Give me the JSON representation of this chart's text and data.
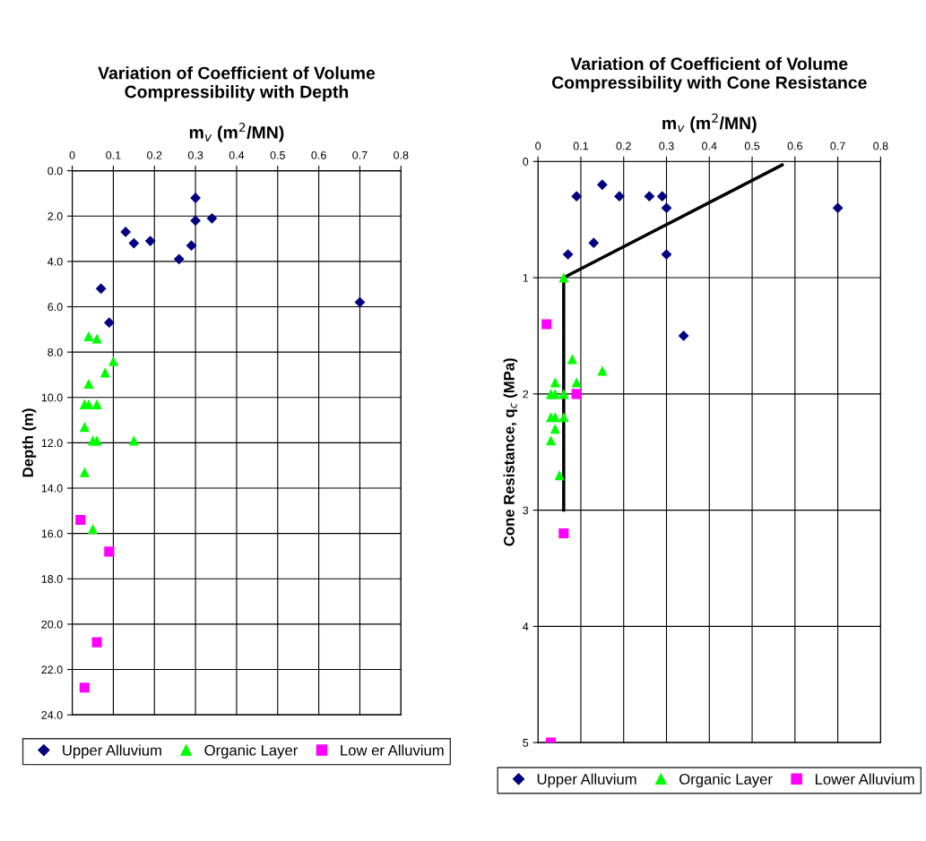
{
  "chart_data": [
    {
      "type": "scatter",
      "title": "Variation of Coefficient of Volume\nCompressibility with Depth",
      "xlabel": "m$_{v}$ (m$^{2}$/MN)",
      "ylabel": "Depth (m)",
      "xlim": [
        0,
        0.8
      ],
      "xticks": [
        0,
        0.1,
        0.2,
        0.3,
        0.4,
        0.5,
        0.6,
        0.7,
        0.8
      ],
      "ylim": [
        24,
        0
      ],
      "yticks": [
        {
          "value": 0,
          "label": "0.0"
        },
        {
          "value": 2,
          "label": "2.0"
        },
        {
          "value": 4,
          "label": "4.0"
        },
        {
          "value": 6,
          "label": "6.0"
        },
        {
          "value": 8,
          "label": "8.0"
        },
        {
          "value": 10,
          "label": "10.0"
        },
        {
          "value": 12,
          "label": "12.0"
        },
        {
          "value": 14,
          "label": "14.0"
        },
        {
          "value": 16,
          "label": "16.0"
        },
        {
          "value": 18,
          "label": "18.0"
        },
        {
          "value": 20,
          "label": "20.0"
        },
        {
          "value": 22,
          "label": "22.0"
        },
        {
          "value": 24,
          "label": "24.0"
        }
      ],
      "grid": true,
      "legend": "bottom",
      "series": [
        {
          "name": "Upper Alluvium",
          "color": "#000080",
          "marker": "diamond",
          "x": [
            0.3,
            0.3,
            0.34,
            0.13,
            0.15,
            0.19,
            0.29,
            0.26,
            0.07,
            0.7,
            0.09
          ],
          "values": [
            1.2,
            2.2,
            2.1,
            2.7,
            3.2,
            3.1,
            3.3,
            3.9,
            5.2,
            5.8,
            6.7
          ]
        },
        {
          "name": "Organic Layer",
          "color": "#00ff00",
          "marker": "triangle",
          "x": [
            0.04,
            0.06,
            0.1,
            0.08,
            0.04,
            0.03,
            0.04,
            0.06,
            0.03,
            0.05,
            0.06,
            0.15,
            0.03,
            0.05
          ],
          "values": [
            7.3,
            7.4,
            8.4,
            8.9,
            9.4,
            10.3,
            10.3,
            10.3,
            11.3,
            11.9,
            11.9,
            11.9,
            13.3,
            15.8
          ]
        },
        {
          "name": "Low er Alluvium",
          "color": "#ff00ff",
          "marker": "square",
          "x": [
            0.02,
            0.09,
            0.06,
            0.03
          ],
          "values": [
            15.4,
            16.8,
            20.8,
            22.8
          ]
        }
      ]
    },
    {
      "type": "scatter",
      "title": "Variation of Coefficient of Volume\nCompressibility with Cone Resistance",
      "xlabel": "m$_{v}$ (m$^{2}$/MN)",
      "ylabel": "Cone Resistance, q$_{c}$ (MPa)",
      "xlim": [
        0,
        0.8
      ],
      "xticks": [
        0,
        0.1,
        0.2,
        0.3,
        0.4,
        0.5,
        0.6,
        0.7,
        0.8
      ],
      "ylim": [
        5,
        0
      ],
      "yticks": [
        0,
        1,
        2,
        3,
        4,
        5
      ],
      "grid": true,
      "legend": "bottom",
      "series": [
        {
          "name": "Upper Alluvium",
          "color": "#000080",
          "marker": "diamond",
          "x": [
            0.09,
            0.15,
            0.19,
            0.26,
            0.29,
            0.3,
            0.7,
            0.13,
            0.07,
            0.3,
            0.34
          ],
          "values": [
            0.3,
            0.2,
            0.3,
            0.3,
            0.3,
            0.4,
            0.4,
            0.7,
            0.8,
            0.8,
            1.5
          ]
        },
        {
          "name": "Organic Layer",
          "color": "#00ff00",
          "marker": "triangle",
          "x": [
            0.06,
            0.08,
            0.15,
            0.04,
            0.09,
            0.03,
            0.04,
            0.06,
            0.03,
            0.04,
            0.06,
            0.04,
            0.03,
            0.05
          ],
          "values": [
            1.0,
            1.7,
            1.8,
            1.9,
            1.9,
            2.0,
            2.0,
            2.0,
            2.2,
            2.2,
            2.2,
            2.3,
            2.4,
            2.7
          ]
        },
        {
          "name": "Lower Alluvium",
          "color": "#ff00ff",
          "marker": "square",
          "x": [
            0.02,
            0.09,
            0.06,
            0.03
          ],
          "values": [
            1.4,
            2.0,
            3.2,
            5.0
          ]
        },
        {
          "type": "line",
          "color": "#000000",
          "marker": "none",
          "line_style": "solid",
          "x": [
            0.06,
            0.06,
            0.07,
            0.57
          ],
          "values": [
            3.0,
            1.0,
            0.98,
            0.03
          ]
        }
      ]
    }
  ]
}
